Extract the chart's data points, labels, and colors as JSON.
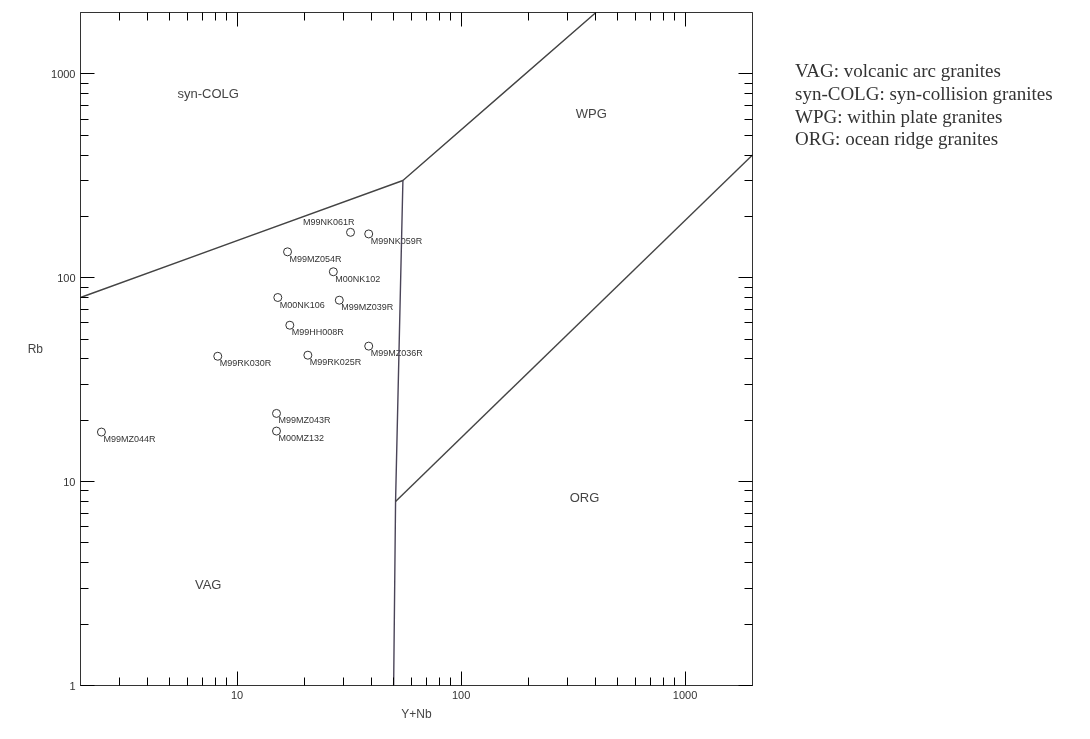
{
  "chart_data": {
    "type": "scatter",
    "xlabel": "Y+Nb",
    "ylabel": "Rb",
    "log": "xy",
    "xlim": [
      2,
      2000
    ],
    "ylim": [
      1,
      2000
    ],
    "xticks": [
      10,
      100,
      1000
    ],
    "yticks": [
      1,
      10,
      100,
      1000
    ],
    "grid": false,
    "marker": "circle",
    "series": [
      {
        "name": "M99NK061R",
        "color": "#333333",
        "x": [
          32.1
        ],
        "values": [
          167
        ]
      },
      {
        "name": "M99NK059R",
        "color": "#333333",
        "x": [
          38.7
        ],
        "values": [
          164
        ]
      },
      {
        "name": "M99MZ054R",
        "color": "#333333",
        "x": [
          16.8
        ],
        "values": [
          134
        ]
      },
      {
        "name": "M00NK102",
        "color": "#333333",
        "x": [
          26.9
        ],
        "values": [
          107
        ]
      },
      {
        "name": "M00NK106",
        "color": "#333333",
        "x": [
          15.2
        ],
        "values": [
          80
        ]
      },
      {
        "name": "M99MZ039R",
        "color": "#333333",
        "x": [
          28.6
        ],
        "values": [
          77.6
        ]
      },
      {
        "name": "M99HH008R",
        "color": "#333333",
        "x": [
          17.2
        ],
        "values": [
          58.5
        ]
      },
      {
        "name": "M99MZ036R",
        "color": "#333333",
        "x": [
          38.7
        ],
        "values": [
          46.2
        ]
      },
      {
        "name": "M99RK030R",
        "color": "#333333",
        "x": [
          8.2
        ],
        "values": [
          41.2
        ]
      },
      {
        "name": "M99RK025R",
        "color": "#333333",
        "x": [
          20.7
        ],
        "values": [
          41.7
        ]
      },
      {
        "name": "M99MZ043R",
        "color": "#333333",
        "x": [
          15.0
        ],
        "values": [
          21.6
        ]
      },
      {
        "name": "M00MZ132",
        "color": "#333333",
        "x": [
          15.0
        ],
        "values": [
          17.7
        ]
      },
      {
        "name": "M99MZ044R",
        "color": "#333333",
        "x": [
          2.48
        ],
        "values": [
          17.5
        ]
      },
      {
        "type": "line",
        "marker": "none",
        "color": "#444444",
        "x": [
          2,
          55,
          400
        ],
        "values": [
          80,
          300,
          2000
        ]
      },
      {
        "type": "line",
        "marker": "none",
        "color": "#4a4458",
        "x": [
          55,
          51,
          50
        ],
        "values": [
          300,
          8,
          1
        ]
      },
      {
        "type": "line",
        "marker": "none",
        "color": "#444444",
        "x": [
          51,
          2000
        ],
        "values": [
          8,
          400
        ]
      }
    ],
    "annotations": [
      "syn-COLG",
      "WPG",
      "ORG",
      "VAG",
      "VAG: volcanic arc granites",
      "syn-COLG: syn-collision granites",
      "WPG: within plate granites",
      "ORG: ocean ridge granites"
    ]
  }
}
